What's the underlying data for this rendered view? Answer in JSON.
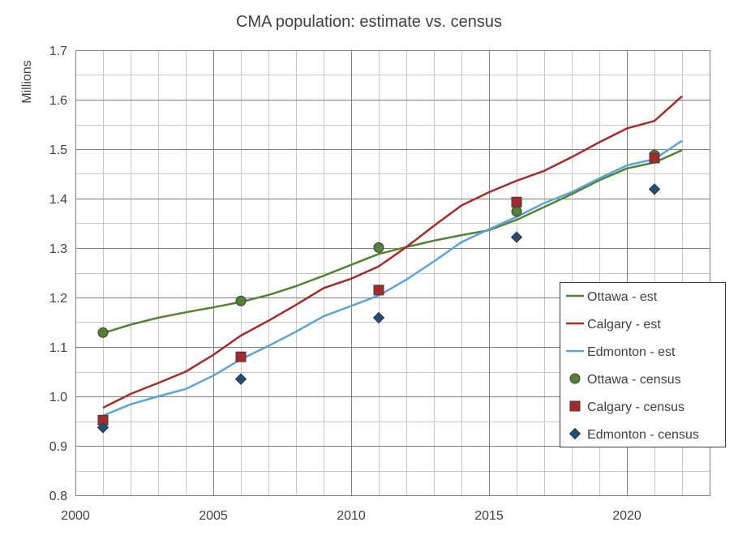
{
  "chart_data": {
    "type": "line",
    "title": "CMA population: estimate vs. census",
    "xlabel": "",
    "ylabel": "Millions",
    "xlim": [
      2000,
      2023
    ],
    "ylim": [
      0.8,
      1.7
    ],
    "x_ticks": [
      "2000",
      "2005",
      "2010",
      "2015",
      "2020"
    ],
    "x_tick_values": [
      2000,
      2005,
      2010,
      2015,
      2020
    ],
    "y_ticks": [
      "0.8",
      "0.9",
      "1.0",
      "1.1",
      "1.2",
      "1.3",
      "1.4",
      "1.5",
      "1.6",
      "1.7"
    ],
    "y_tick_values": [
      0.8,
      0.9,
      1.0,
      1.1,
      1.2,
      1.3,
      1.4,
      1.5,
      1.6,
      1.7
    ],
    "grid": "major and minor (yearly x, 0.05 y)",
    "legend_position": "right",
    "series": [
      {
        "name": "Ottawa - est",
        "kind": "line",
        "color": "#548235",
        "x": [
          2001,
          2002,
          2003,
          2004,
          2005,
          2006,
          2007,
          2008,
          2009,
          2010,
          2011,
          2012,
          2013,
          2014,
          2015,
          2016,
          2017,
          2018,
          2019,
          2020,
          2021,
          2022
        ],
        "values": [
          1.128,
          1.145,
          1.159,
          1.17,
          1.18,
          1.191,
          1.205,
          1.223,
          1.244,
          1.266,
          1.288,
          1.302,
          1.315,
          1.326,
          1.336,
          1.357,
          1.383,
          1.409,
          1.437,
          1.461,
          1.473,
          1.498
        ]
      },
      {
        "name": "Calgary - est",
        "kind": "line",
        "color": "#A52A2A",
        "x": [
          2001,
          2002,
          2003,
          2004,
          2005,
          2006,
          2007,
          2008,
          2009,
          2010,
          2011,
          2012,
          2013,
          2014,
          2015,
          2016,
          2017,
          2018,
          2019,
          2020,
          2021,
          2022
        ],
        "values": [
          0.977,
          1.005,
          1.027,
          1.05,
          1.084,
          1.123,
          1.153,
          1.185,
          1.219,
          1.238,
          1.263,
          1.302,
          1.345,
          1.386,
          1.413,
          1.436,
          1.456,
          1.484,
          1.514,
          1.542,
          1.557,
          1.607
        ]
      },
      {
        "name": "Edmonton - est",
        "kind": "line",
        "color": "#5BA3D9",
        "x": [
          2001,
          2002,
          2003,
          2004,
          2005,
          2006,
          2007,
          2008,
          2009,
          2010,
          2011,
          2012,
          2013,
          2014,
          2015,
          2016,
          2017,
          2018,
          2019,
          2020,
          2021,
          2022
        ],
        "values": [
          0.961,
          0.984,
          1.0,
          1.015,
          1.042,
          1.075,
          1.102,
          1.131,
          1.162,
          1.183,
          1.204,
          1.236,
          1.273,
          1.312,
          1.338,
          1.363,
          1.391,
          1.413,
          1.441,
          1.467,
          1.48,
          1.517
        ]
      },
      {
        "name": "Ottawa - census",
        "kind": "marker",
        "marker": "circle",
        "color": "#548235",
        "x": [
          2001,
          2006,
          2011,
          2016,
          2021
        ],
        "values": [
          1.129,
          1.193,
          1.301,
          1.374,
          1.488
        ]
      },
      {
        "name": "Calgary - census",
        "kind": "marker",
        "marker": "square",
        "color": "#A52A2A",
        "x": [
          2001,
          2006,
          2011,
          2016,
          2021
        ],
        "values": [
          0.952,
          1.08,
          1.215,
          1.393,
          1.482
        ]
      },
      {
        "name": "Edmonton - census",
        "kind": "marker",
        "marker": "diamond",
        "color": "#1F4E79",
        "x": [
          2001,
          2006,
          2011,
          2016,
          2021
        ],
        "values": [
          0.937,
          1.035,
          1.159,
          1.322,
          1.419
        ]
      }
    ]
  }
}
